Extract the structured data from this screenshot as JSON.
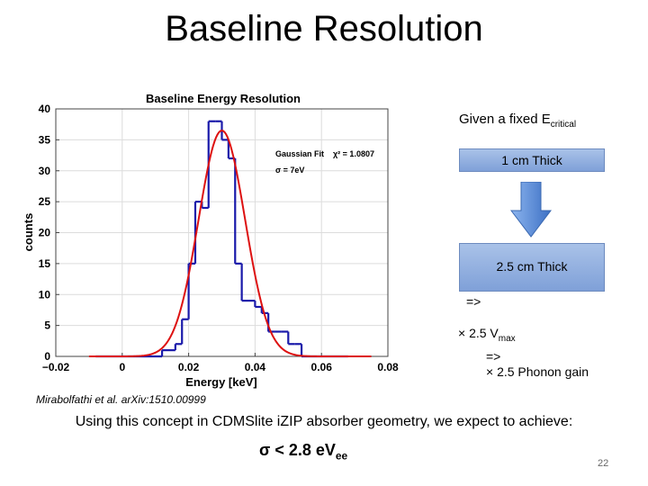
{
  "slide": {
    "title": "Baseline Resolution",
    "page_number": "22"
  },
  "side": {
    "given_text": "Given a fixed E",
    "given_sub": "critical",
    "box1_label": "1 cm Thick",
    "box2_label": "2.5 cm Thick",
    "step1": "=>",
    "step2_text": "× 2.5 V",
    "step2_sub": "max",
    "step3": "=>",
    "step4": "× 2.5 Phonon gain"
  },
  "citation": "Mirabolfathi et al. arXiv:1510.00999",
  "concept": "Using this concept in CDMSlite iZIP absorber geometry, we expect to achieve:",
  "result": {
    "text": "σ < 2.8 eV",
    "sub": "ee"
  },
  "colors": {
    "histogram": "#1a1aaa",
    "fit": "#dd1111",
    "box_fill": "#8fabdc",
    "arrow": "#5b8fd8"
  },
  "chart_data": {
    "type": "histogram",
    "title": "Baseline Energy Resolution",
    "xlabel": "Energy [keV]",
    "ylabel": "counts",
    "xlim": [
      -0.02,
      0.08
    ],
    "ylim": [
      0,
      40
    ],
    "xticks": [
      -0.02,
      0,
      0.02,
      0.04,
      0.06,
      0.08
    ],
    "xtick_labels": [
      "−0.02",
      "0",
      "0.02",
      "0.04",
      "0.06",
      "0.08"
    ],
    "yticks": [
      0,
      5,
      10,
      15,
      20,
      25,
      30,
      35,
      40
    ],
    "ytick_labels": [
      "0",
      "5",
      "10",
      "15",
      "20",
      "25",
      "30",
      "35",
      "40"
    ],
    "bins": [
      {
        "x0": -0.008,
        "x1": 0.012,
        "count": 0
      },
      {
        "x0": 0.012,
        "x1": 0.016,
        "count": 1
      },
      {
        "x0": 0.016,
        "x1": 0.018,
        "count": 2
      },
      {
        "x0": 0.018,
        "x1": 0.02,
        "count": 6
      },
      {
        "x0": 0.02,
        "x1": 0.022,
        "count": 15
      },
      {
        "x0": 0.022,
        "x1": 0.024,
        "count": 25
      },
      {
        "x0": 0.024,
        "x1": 0.026,
        "count": 24
      },
      {
        "x0": 0.026,
        "x1": 0.028,
        "count": 38
      },
      {
        "x0": 0.028,
        "x1": 0.03,
        "count": 38
      },
      {
        "x0": 0.03,
        "x1": 0.032,
        "count": 35
      },
      {
        "x0": 0.032,
        "x1": 0.034,
        "count": 32
      },
      {
        "x0": 0.034,
        "x1": 0.036,
        "count": 15
      },
      {
        "x0": 0.036,
        "x1": 0.038,
        "count": 9
      },
      {
        "x0": 0.038,
        "x1": 0.04,
        "count": 9
      },
      {
        "x0": 0.04,
        "x1": 0.042,
        "count": 8
      },
      {
        "x0": 0.042,
        "x1": 0.044,
        "count": 7
      },
      {
        "x0": 0.044,
        "x1": 0.046,
        "count": 4
      },
      {
        "x0": 0.046,
        "x1": 0.048,
        "count": 4
      },
      {
        "x0": 0.048,
        "x1": 0.05,
        "count": 4
      },
      {
        "x0": 0.05,
        "x1": 0.052,
        "count": 2
      },
      {
        "x0": 0.052,
        "x1": 0.054,
        "count": 2
      },
      {
        "x0": 0.054,
        "x1": 0.068,
        "count": 0
      }
    ],
    "fit": {
      "name": "Gaussian Fit",
      "function": "gaussian",
      "mean": 0.03,
      "sigma": 0.007,
      "amplitude": 36.5,
      "x_range": [
        -0.01,
        0.075
      ]
    },
    "annotations": {
      "fit_label": "Gaussian Fit",
      "chi2_label": "χ² = 1.0807",
      "sigma_label": "σ = 7eV"
    }
  }
}
